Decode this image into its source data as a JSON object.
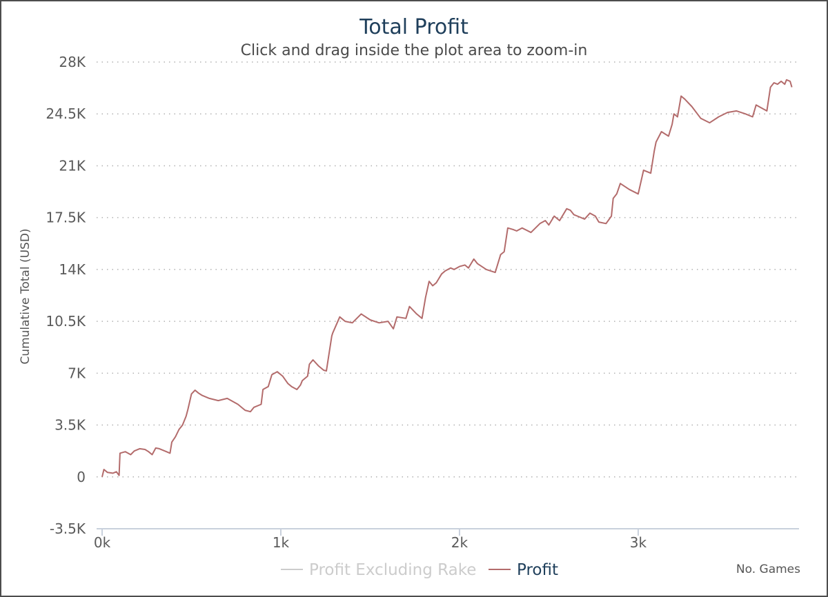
{
  "chart_data": {
    "type": "line",
    "title": "Total Profit",
    "subtitle": "Click and drag inside the plot area to zoom-in",
    "xlabel": "No. Games",
    "ylabel": "Cumulative Total (USD)",
    "xlim": [
      0,
      3900
    ],
    "ylim": [
      -3500,
      28000
    ],
    "x_ticks": [
      0,
      1000,
      2000,
      3000
    ],
    "x_tick_labels": [
      "0k",
      "1k",
      "2k",
      "3k"
    ],
    "y_ticks": [
      -3500,
      0,
      3500,
      7000,
      10500,
      14000,
      17500,
      21000,
      24500,
      28000
    ],
    "y_tick_labels": [
      "-3.5K",
      "0",
      "3.5K",
      "7K",
      "10.5K",
      "14K",
      "17.5K",
      "21K",
      "24.5K",
      "28K"
    ],
    "grid": true,
    "legend_position": "bottom",
    "series": [
      {
        "name": "Profit Excluding Rake",
        "color": "#cccccc",
        "visible": false,
        "x": [],
        "y": []
      },
      {
        "name": "Profit",
        "color": "#b36b6b",
        "visible": true,
        "x": [
          0,
          10,
          30,
          60,
          80,
          95,
          100,
          130,
          160,
          180,
          210,
          240,
          260,
          280,
          300,
          320,
          360,
          380,
          390,
          410,
          430,
          450,
          470,
          480,
          500,
          520,
          540,
          560,
          600,
          650,
          700,
          760,
          800,
          830,
          850,
          890,
          900,
          930,
          950,
          980,
          1010,
          1040,
          1060,
          1090,
          1110,
          1120,
          1150,
          1160,
          1180,
          1210,
          1240,
          1255,
          1285,
          1290,
          1330,
          1360,
          1400,
          1450,
          1500,
          1550,
          1600,
          1630,
          1650,
          1700,
          1720,
          1760,
          1790,
          1810,
          1830,
          1850,
          1870,
          1880,
          1900,
          1920,
          1950,
          1970,
          2000,
          2030,
          2050,
          2080,
          2100,
          2150,
          2200,
          2230,
          2250,
          2270,
          2300,
          2320,
          2350,
          2400,
          2450,
          2480,
          2500,
          2530,
          2560,
          2600,
          2620,
          2640,
          2660,
          2700,
          2730,
          2760,
          2780,
          2820,
          2850,
          2860,
          2880,
          2900,
          2950,
          3000,
          3030,
          3070,
          3090,
          3100,
          3130,
          3170,
          3190,
          3200,
          3220,
          3240,
          3260,
          3300,
          3350,
          3400,
          3450,
          3500,
          3550,
          3600,
          3640,
          3660,
          3690,
          3720,
          3740,
          3760,
          3780,
          3800,
          3820,
          3830,
          3850,
          3860
        ],
        "y": [
          0,
          500,
          300,
          250,
          350,
          100,
          1600,
          1700,
          1500,
          1750,
          1900,
          1850,
          1700,
          1500,
          1950,
          1900,
          1700,
          1600,
          2350,
          2700,
          3200,
          3500,
          4100,
          4550,
          5600,
          5850,
          5650,
          5500,
          5300,
          5150,
          5300,
          4900,
          4500,
          4400,
          4700,
          4900,
          5900,
          6100,
          6900,
          7100,
          6800,
          6300,
          6100,
          5900,
          6200,
          6500,
          6800,
          7600,
          7900,
          7500,
          7200,
          7150,
          9500,
          9700,
          10800,
          10500,
          10400,
          11000,
          10600,
          10400,
          10500,
          10000,
          10800,
          10700,
          11500,
          11000,
          10700,
          12100,
          13200,
          12900,
          13100,
          13300,
          13700,
          13900,
          14100,
          14000,
          14200,
          14300,
          14100,
          14700,
          14400,
          14000,
          13800,
          15000,
          15200,
          16800,
          16700,
          16600,
          16800,
          16500,
          17100,
          17300,
          17000,
          17600,
          17300,
          18100,
          18000,
          17700,
          17600,
          17400,
          17800,
          17600,
          17200,
          17100,
          17600,
          18800,
          19100,
          19800,
          19400,
          19100,
          20700,
          20500,
          22000,
          22600,
          23300,
          23000,
          23800,
          24500,
          24300,
          25700,
          25500,
          25000,
          24200,
          23900,
          24300,
          24600,
          24700,
          24500,
          24300,
          25100,
          24900,
          24700,
          26300,
          26600,
          26500,
          26700,
          26500,
          26800,
          26700,
          26300
        ]
      }
    ]
  }
}
